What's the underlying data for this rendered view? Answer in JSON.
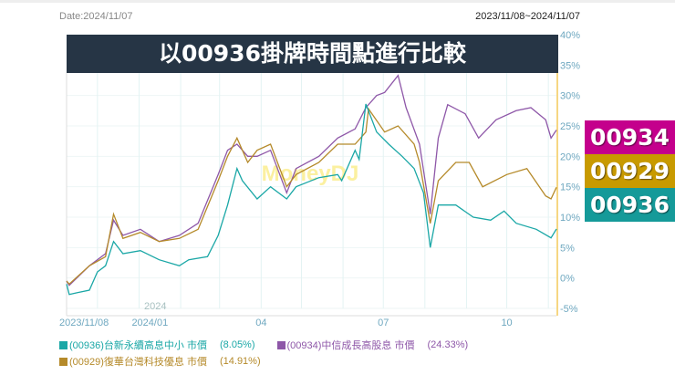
{
  "header": {
    "date": "Date:2024/11/07",
    "range": "2023/11/08~2024/11/07"
  },
  "banner": {
    "title": "以00936掛牌時間點進行比較"
  },
  "watermark": "MoneyDJ",
  "badges": [
    {
      "label": "00934",
      "color": "#c4008c"
    },
    {
      "label": "00929",
      "color": "#c89a00"
    },
    {
      "label": "00936",
      "color": "#159a99"
    }
  ],
  "chart_data": {
    "type": "line",
    "x_range": [
      "2023-11-08",
      "2024-11-07"
    ],
    "ylim": [
      -5,
      40
    ],
    "y_ticks": [
      "40%",
      "35%",
      "30%",
      "25%",
      "20%",
      "15%",
      "10%",
      "5%",
      "0%",
      "-5%"
    ],
    "y_tick_values": [
      40,
      35,
      30,
      25,
      20,
      15,
      10,
      5,
      0,
      -5
    ],
    "x_ticks": [
      {
        "date": "2023-11-08",
        "label": "2023/11/08"
      },
      {
        "date": "2024-01-01",
        "label": "2024/01"
      },
      {
        "date": "2024-04-01",
        "label": "04"
      },
      {
        "date": "2024-07-01",
        "label": "07"
      },
      {
        "date": "2024-10-01",
        "label": "10"
      }
    ],
    "year_label": "2024",
    "grid": true,
    "series": [
      {
        "name": "(00936)台新永續高息中小 市價",
        "final": "(8.05%)",
        "color": "#1aa7a6",
        "points": [
          [
            "2023-11-08",
            -1
          ],
          [
            "2023-11-10",
            -2.7
          ],
          [
            "2023-11-16",
            -2.4
          ],
          [
            "2023-11-25",
            -2
          ],
          [
            "2023-12-01",
            1
          ],
          [
            "2023-12-07",
            2
          ],
          [
            "2023-12-13",
            6
          ],
          [
            "2023-12-20",
            4
          ],
          [
            "2024-01-02",
            4.5
          ],
          [
            "2024-01-16",
            3
          ],
          [
            "2024-01-31",
            2
          ],
          [
            "2024-02-07",
            3
          ],
          [
            "2024-02-21",
            3.5
          ],
          [
            "2024-02-29",
            7
          ],
          [
            "2024-03-07",
            12
          ],
          [
            "2024-03-14",
            18
          ],
          [
            "2024-03-18",
            16
          ],
          [
            "2024-03-29",
            13
          ],
          [
            "2024-04-08",
            15
          ],
          [
            "2024-04-20",
            13
          ],
          [
            "2024-04-27",
            15
          ],
          [
            "2024-05-14",
            16.5
          ],
          [
            "2024-05-28",
            17
          ],
          [
            "2024-05-31",
            16
          ],
          [
            "2024-06-10",
            21
          ],
          [
            "2024-06-13",
            19.5
          ],
          [
            "2024-06-18",
            28.6
          ],
          [
            "2024-06-26",
            24
          ],
          [
            "2024-07-05",
            22
          ],
          [
            "2024-07-15",
            20
          ],
          [
            "2024-07-24",
            18
          ],
          [
            "2024-07-31",
            14
          ],
          [
            "2024-08-05",
            5
          ],
          [
            "2024-08-11",
            12
          ],
          [
            "2024-08-24",
            12
          ],
          [
            "2024-09-06",
            10
          ],
          [
            "2024-09-19",
            9.5
          ],
          [
            "2024-09-29",
            11
          ],
          [
            "2024-10-08",
            9
          ],
          [
            "2024-10-23",
            8
          ],
          [
            "2024-11-03",
            6.6
          ],
          [
            "2024-11-07",
            8.05
          ]
        ]
      },
      {
        "name": "(00934)中信成長高股息 市價",
        "final": "(24.33%)",
        "color": "#8e57a8",
        "points": [
          [
            "2023-11-08",
            -0.5
          ],
          [
            "2023-11-10",
            -1.2
          ],
          [
            "2023-11-25",
            2
          ],
          [
            "2023-12-07",
            4
          ],
          [
            "2023-12-13",
            9.5
          ],
          [
            "2023-12-20",
            7
          ],
          [
            "2024-01-02",
            8
          ],
          [
            "2024-01-16",
            6
          ],
          [
            "2024-01-31",
            7
          ],
          [
            "2024-02-14",
            9
          ],
          [
            "2024-02-29",
            17
          ],
          [
            "2024-03-07",
            21
          ],
          [
            "2024-03-14",
            22
          ],
          [
            "2024-03-22",
            20
          ],
          [
            "2024-03-29",
            20
          ],
          [
            "2024-04-08",
            21
          ],
          [
            "2024-04-20",
            14
          ],
          [
            "2024-04-27",
            18
          ],
          [
            "2024-05-14",
            20
          ],
          [
            "2024-05-28",
            23
          ],
          [
            "2024-06-10",
            24.5
          ],
          [
            "2024-06-18",
            28
          ],
          [
            "2024-06-26",
            30
          ],
          [
            "2024-07-02",
            30.5
          ],
          [
            "2024-07-12",
            33.3
          ],
          [
            "2024-07-18",
            28
          ],
          [
            "2024-07-28",
            22
          ],
          [
            "2024-08-05",
            10.5
          ],
          [
            "2024-08-11",
            23
          ],
          [
            "2024-08-18",
            28.5
          ],
          [
            "2024-08-31",
            27
          ],
          [
            "2024-09-10",
            23
          ],
          [
            "2024-09-23",
            26
          ],
          [
            "2024-10-08",
            27.5
          ],
          [
            "2024-10-19",
            28
          ],
          [
            "2024-10-30",
            26
          ],
          [
            "2024-11-03",
            23
          ],
          [
            "2024-11-07",
            24.33
          ]
        ]
      },
      {
        "name": "(00929)復華台灣科技優息 市價",
        "final": "(14.91%)",
        "color": "#b58a2a",
        "points": [
          [
            "2023-11-08",
            -0.5
          ],
          [
            "2023-11-10",
            -1
          ],
          [
            "2023-11-25",
            2
          ],
          [
            "2023-12-07",
            3.5
          ],
          [
            "2023-12-13",
            10.5
          ],
          [
            "2023-12-20",
            6.5
          ],
          [
            "2024-01-02",
            7.5
          ],
          [
            "2024-01-16",
            6
          ],
          [
            "2024-01-31",
            6.5
          ],
          [
            "2024-02-14",
            8
          ],
          [
            "2024-02-29",
            16
          ],
          [
            "2024-03-07",
            20
          ],
          [
            "2024-03-14",
            23
          ],
          [
            "2024-03-22",
            19
          ],
          [
            "2024-03-29",
            21
          ],
          [
            "2024-04-08",
            22
          ],
          [
            "2024-04-20",
            15
          ],
          [
            "2024-04-27",
            17
          ],
          [
            "2024-05-14",
            19
          ],
          [
            "2024-05-28",
            22
          ],
          [
            "2024-06-10",
            22
          ],
          [
            "2024-06-18",
            24
          ],
          [
            "2024-06-20",
            27.8
          ],
          [
            "2024-07-02",
            24
          ],
          [
            "2024-07-12",
            25
          ],
          [
            "2024-07-24",
            22
          ],
          [
            "2024-07-28",
            19
          ],
          [
            "2024-08-05",
            9
          ],
          [
            "2024-08-11",
            16
          ],
          [
            "2024-08-24",
            19
          ],
          [
            "2024-09-03",
            19
          ],
          [
            "2024-09-13",
            15
          ],
          [
            "2024-10-01",
            17
          ],
          [
            "2024-10-16",
            18
          ],
          [
            "2024-10-30",
            13.5
          ],
          [
            "2024-11-03",
            13
          ],
          [
            "2024-11-07",
            14.91
          ]
        ]
      }
    ]
  }
}
